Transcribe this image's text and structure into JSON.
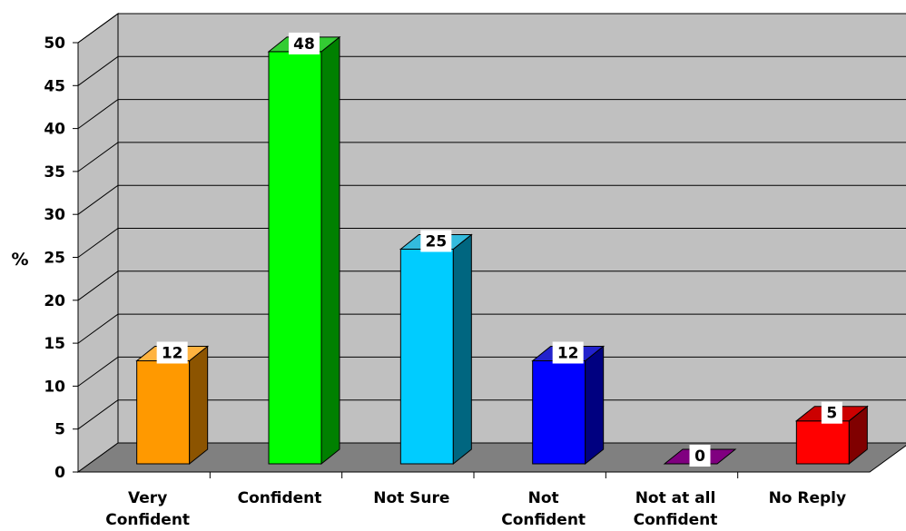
{
  "chart_data": {
    "type": "bar",
    "categories": [
      [
        "Very",
        "Confident"
      ],
      [
        "Confident"
      ],
      [
        "Not Sure"
      ],
      [
        "Not",
        "Confident"
      ],
      [
        "Not at all",
        "Confident"
      ],
      [
        "No Reply"
      ]
    ],
    "values": [
      12,
      48,
      25,
      12,
      0,
      5
    ],
    "data_labels": [
      "12",
      "48",
      "25",
      "12",
      "0",
      "5"
    ],
    "ylabel": "%",
    "xlabel": "",
    "title": "",
    "ylim": [
      0,
      50
    ],
    "yticks": [
      0,
      5,
      10,
      15,
      20,
      25,
      30,
      35,
      40,
      45,
      50
    ],
    "grid": true,
    "three_d": true,
    "colors": {
      "bars": [
        {
          "front": "#FF9900",
          "side": "#8C5400",
          "top": "#FFB340"
        },
        {
          "front": "#00FF00",
          "side": "#008000",
          "top": "#33CC33"
        },
        {
          "front": "#00CCFF",
          "side": "#006680",
          "top": "#33BBDD"
        },
        {
          "front": "#0000FF",
          "side": "#000080",
          "top": "#2222CC"
        },
        {
          "front": "#800080",
          "side": "#400040",
          "top": "#800080"
        },
        {
          "front": "#FF0000",
          "side": "#800000",
          "top": "#CC0000"
        }
      ],
      "back_wall": "#C0C0C0",
      "side_wall": "#C0C0C0",
      "floor": "#808080",
      "gridline": "#000000"
    }
  }
}
